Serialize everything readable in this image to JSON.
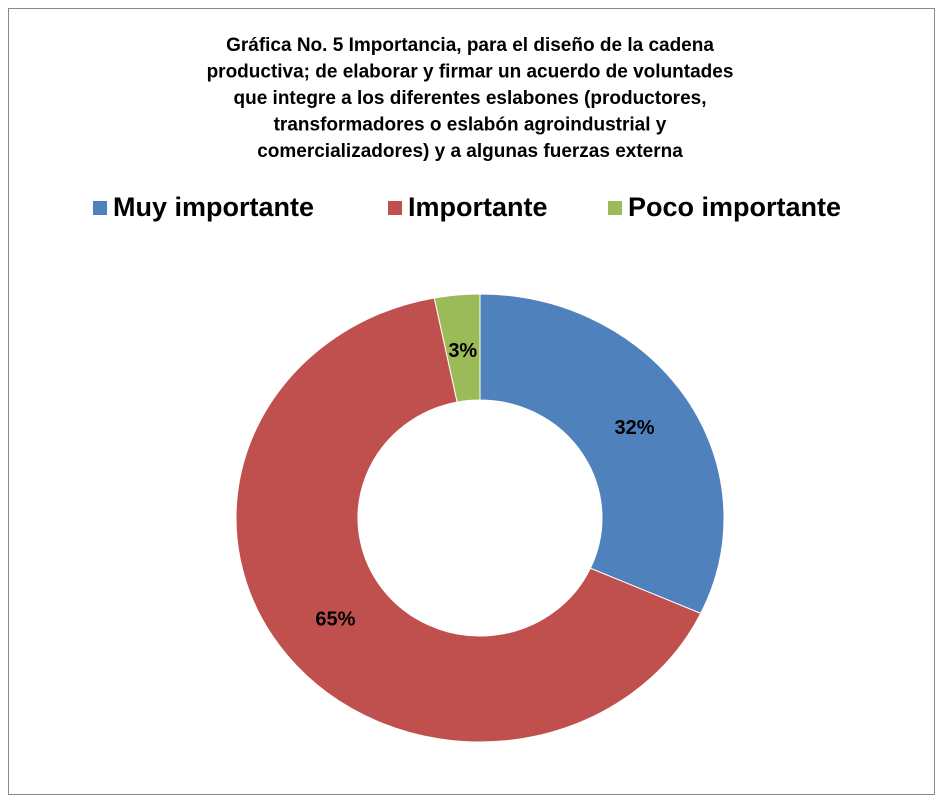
{
  "chart_data": {
    "type": "donut",
    "title": [
      "Gráfica No. 5 Importancia, para el diseño de la cadena",
      "productiva; de elaborar y firmar un acuerdo de voluntades",
      "que integre a los diferentes eslabones (productores,",
      "transformadores o eslabón agroindustrial y",
      "comercializadores) y a algunas fuerzas externa"
    ],
    "categories": [
      "Muy importante",
      "Importante",
      "Poco importante"
    ],
    "values": [
      32,
      65,
      3
    ],
    "value_labels": [
      "32%",
      "65%",
      "3%"
    ],
    "colors": [
      "#4f81bd",
      "#c0504d",
      "#9bbb59"
    ],
    "legend": "top"
  }
}
